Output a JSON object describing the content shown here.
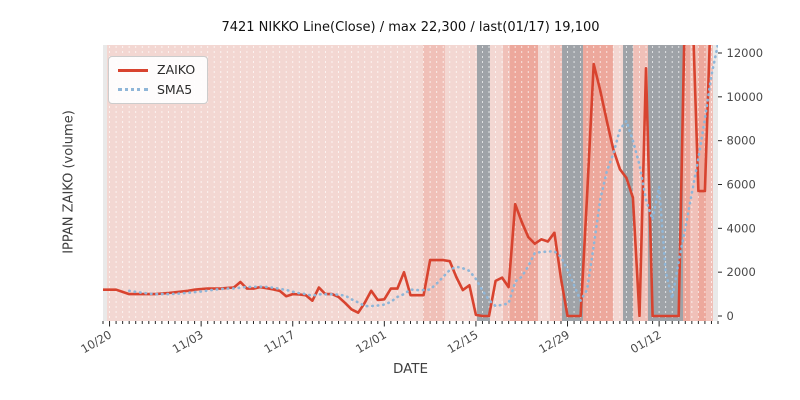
{
  "title": "7421 NIKKO Line(Close) / max 22,300 / last(01/17) 19,100",
  "legend": {
    "items": [
      {
        "label": "ZAIKO",
        "style": "solid",
        "color": "#d8432f"
      },
      {
        "label": "SMA5",
        "style": "dotted",
        "color": "#8fb6d8"
      }
    ]
  },
  "chart_data": {
    "type": "line",
    "title": "7421 NIKKO Line(Close) / max 22,300 / last(01/17) 19,100",
    "xlabel": "DATE",
    "ylabel": "IPPAN ZAIKO (volume)",
    "ylim": [
      0,
      12000
    ],
    "y_ticks": [
      0,
      2000,
      4000,
      6000,
      8000,
      10000,
      12000
    ],
    "grid": "vertical-daily-white-dashed",
    "legend_position": "upper-left",
    "x_tick_labels": [
      "10/20",
      "11/03",
      "11/17",
      "12/01",
      "12/15",
      "12/29",
      "01/12"
    ],
    "x_tick_days": [
      1,
      15,
      29,
      43,
      57,
      71,
      85
    ],
    "dates": [
      "10/19",
      "10/20",
      "10/21",
      "10/22",
      "10/23",
      "10/24",
      "10/25",
      "10/26",
      "10/27",
      "10/28",
      "10/29",
      "10/30",
      "10/31",
      "11/01",
      "11/02",
      "11/03",
      "11/04",
      "11/05",
      "11/06",
      "11/07",
      "11/08",
      "11/09",
      "11/10",
      "11/11",
      "11/12",
      "11/13",
      "11/14",
      "11/15",
      "11/16",
      "11/17",
      "11/18",
      "11/19",
      "11/20",
      "11/21",
      "11/22",
      "11/23",
      "11/24",
      "11/25",
      "11/26",
      "11/27",
      "11/28",
      "11/29",
      "11/30",
      "12/01",
      "12/02",
      "12/03",
      "12/04",
      "12/05",
      "12/06",
      "12/07",
      "12/08",
      "12/09",
      "12/10",
      "12/11",
      "12/12",
      "12/13",
      "12/14",
      "12/15",
      "12/16",
      "12/17",
      "12/18",
      "12/19",
      "12/20",
      "12/21",
      "12/22",
      "12/23",
      "12/24",
      "12/25",
      "12/26",
      "12/27",
      "12/28",
      "12/29",
      "12/30",
      "12/31",
      "01/01",
      "01/02",
      "01/03",
      "01/04",
      "01/05",
      "01/06",
      "01/07",
      "01/08",
      "01/09",
      "01/10",
      "01/11",
      "01/12",
      "01/13",
      "01/14",
      "01/15",
      "01/16",
      "01/17",
      "01/18",
      "01/19",
      "01/20",
      "01/21"
    ],
    "series": [
      {
        "name": "ZAIKO",
        "color": "#d8432f",
        "style": "solid",
        "width": 2.6,
        "values": [
          1200,
          1200,
          1200,
          1100,
          1000,
          1000,
          1000,
          1000,
          1000,
          1020,
          1050,
          1080,
          1120,
          1150,
          1200,
          1230,
          1250,
          1250,
          1250,
          1280,
          1300,
          1550,
          1250,
          1250,
          1320,
          1270,
          1220,
          1150,
          900,
          1000,
          980,
          950,
          700,
          1300,
          1000,
          1000,
          870,
          600,
          300,
          150,
          600,
          1150,
          730,
          760,
          1250,
          1250,
          2000,
          950,
          950,
          950,
          2550,
          2550,
          2550,
          2500,
          1780,
          1180,
          1400,
          50,
          0,
          0,
          1600,
          1750,
          1320,
          5100,
          4300,
          3600,
          3300,
          3500,
          3400,
          3800,
          1700,
          0,
          0,
          0,
          5500,
          11500,
          10300,
          8900,
          7600,
          6700,
          6300,
          5400,
          0,
          11300,
          0,
          0,
          0,
          0,
          0,
          15000,
          15000,
          5700,
          5700,
          15000,
          15000
        ]
      },
      {
        "name": "SMA5",
        "color": "#8fb6d8",
        "style": "dotted",
        "width": 2.6,
        "values": [
          null,
          null,
          null,
          null,
          1150,
          1100,
          1060,
          1020,
          1000,
          1000,
          1000,
          1010,
          1030,
          1060,
          1090,
          1120,
          1160,
          1200,
          1230,
          1250,
          1260,
          1290,
          1330,
          1330,
          1340,
          1330,
          1290,
          1240,
          1190,
          1110,
          1040,
          1000,
          920,
          990,
          990,
          990,
          970,
          930,
          760,
          620,
          450,
          450,
          480,
          520,
          650,
          870,
          1000,
          1210,
          1180,
          1180,
          1210,
          1480,
          1790,
          2100,
          2250,
          2180,
          2060,
          1690,
          1160,
          730,
          450,
          510,
          570,
          1570,
          1790,
          2270,
          2880,
          2920,
          2940,
          2950,
          2700,
          2100,
          1400,
          700,
          1200,
          3200,
          5300,
          6600,
          7400,
          8500,
          8900,
          8000,
          6900,
          5300,
          4400,
          5900,
          2000,
          800,
          2500,
          4000,
          5600,
          7200,
          9000,
          11000,
          12400
        ]
      }
    ],
    "band_colors": {
      "p1": "#f3d7d2",
      "p2": "#f0c0b8",
      "p3": "#eda89c",
      "gray": "#9fa3a8",
      "edge": "#e9e9e9"
    },
    "background_bands": [
      {
        "from_day": 0,
        "to_day": 0.61,
        "shade": "edge"
      },
      {
        "from_day": 0.61,
        "to_day": 48.9,
        "shade": "p1"
      },
      {
        "from_day": 48.9,
        "to_day": 52.27,
        "shade": "p2"
      },
      {
        "from_day": 52.27,
        "to_day": 57.16,
        "shade": "p1"
      },
      {
        "from_day": 57.16,
        "to_day": 59.15,
        "shade": "gray"
      },
      {
        "from_day": 59.15,
        "to_day": 61.14,
        "shade": "p1"
      },
      {
        "from_day": 61.14,
        "to_day": 62.21,
        "shade": "p2"
      },
      {
        "from_day": 62.21,
        "to_day": 66.49,
        "shade": "p3"
      },
      {
        "from_day": 66.49,
        "to_day": 68.32,
        "shade": "p1"
      },
      {
        "from_day": 68.32,
        "to_day": 70.16,
        "shade": "p2"
      },
      {
        "from_day": 70.16,
        "to_day": 73.37,
        "shade": "gray"
      },
      {
        "from_day": 73.37,
        "to_day": 77.95,
        "shade": "p3"
      },
      {
        "from_day": 77.95,
        "to_day": 79.48,
        "shade": "p1"
      },
      {
        "from_day": 79.48,
        "to_day": 81.01,
        "shade": "gray"
      },
      {
        "from_day": 81.01,
        "to_day": 83.3,
        "shade": "p2"
      },
      {
        "from_day": 83.3,
        "to_day": 88.65,
        "shade": "gray"
      },
      {
        "from_day": 88.65,
        "to_day": 89.72,
        "shade": "p3"
      },
      {
        "from_day": 89.72,
        "to_day": 90.95,
        "shade": "p2"
      },
      {
        "from_day": 90.95,
        "to_day": 92.17,
        "shade": "p3"
      },
      {
        "from_day": 92.17,
        "to_day": 93.24,
        "shade": "p2"
      },
      {
        "from_day": 93.24,
        "to_day": 94,
        "shade": "edge"
      }
    ]
  }
}
